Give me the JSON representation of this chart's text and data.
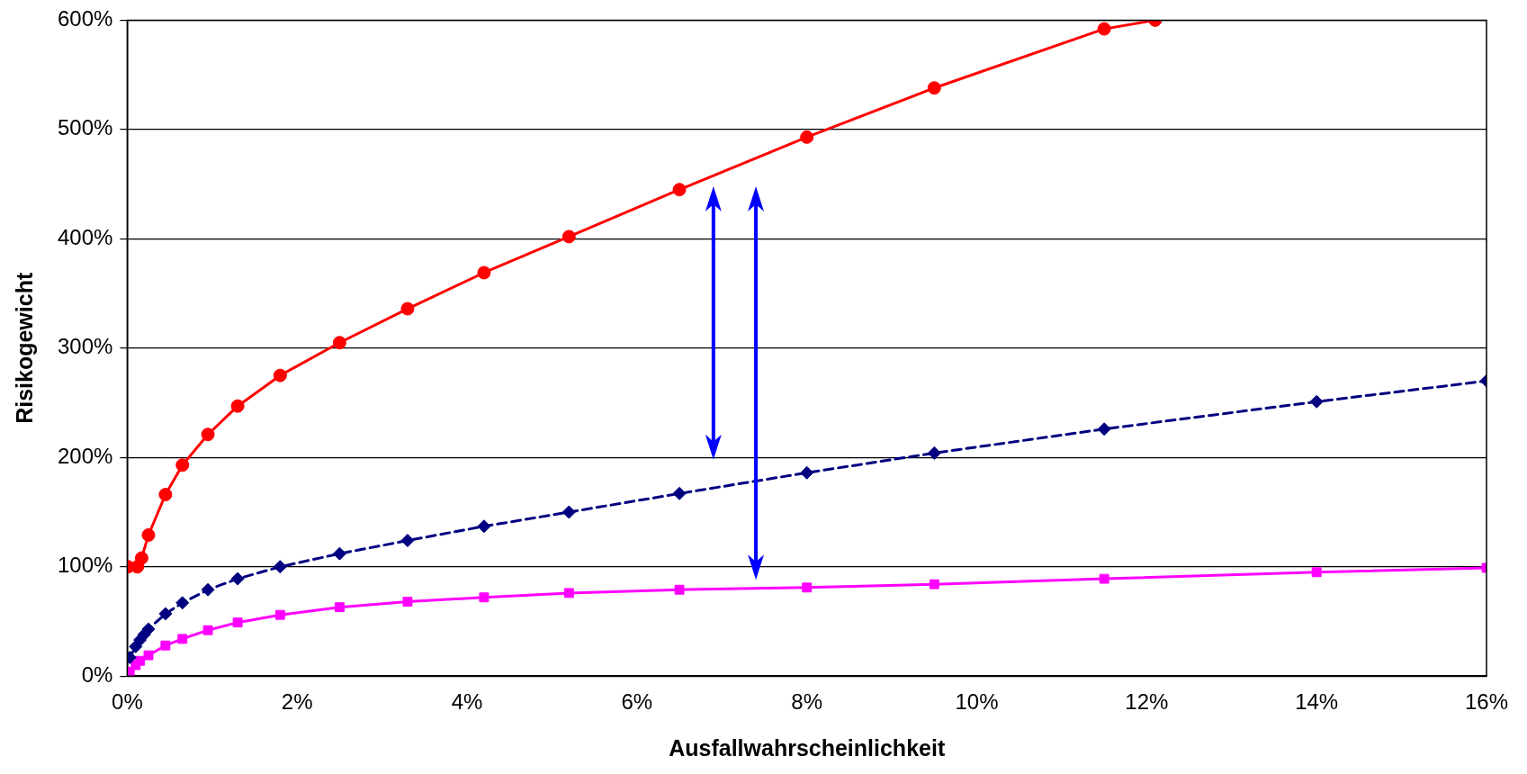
{
  "chart_data": {
    "type": "line",
    "xlabel": "Ausfallwahrscheinlichkeit",
    "ylabel": "Risikogewicht",
    "xlim": [
      0,
      16
    ],
    "xticks": [
      {
        "value": 0,
        "label": "0%"
      },
      {
        "value": 2,
        "label": "2%"
      },
      {
        "value": 4,
        "label": "4%"
      },
      {
        "value": 6,
        "label": "6%"
      },
      {
        "value": 8,
        "label": "8%"
      },
      {
        "value": 10,
        "label": "10%"
      },
      {
        "value": 12,
        "label": "12%"
      },
      {
        "value": 14,
        "label": "14%"
      },
      {
        "value": 16,
        "label": "16%"
      }
    ],
    "ylim": [
      0,
      600
    ],
    "yticks": [
      {
        "value": 0,
        "label": "0%"
      },
      {
        "value": 100,
        "label": "100%"
      },
      {
        "value": 200,
        "label": "200%"
      },
      {
        "value": 300,
        "label": "300%"
      },
      {
        "value": 400,
        "label": "400%"
      },
      {
        "value": 500,
        "label": "500%"
      },
      {
        "value": 600,
        "label": "600%"
      }
    ],
    "grid": "y",
    "legend": false,
    "series": [
      {
        "color": "#ff0000",
        "marker": "circle",
        "line_style": "solid",
        "x": [
          0.01,
          0.12,
          0.17,
          0.25,
          0.45,
          0.65,
          0.95,
          1.3,
          1.8,
          2.5,
          3.3,
          4.2,
          5.2,
          6.5,
          8,
          9.5,
          11.5,
          12.1
        ],
        "values": [
          100,
          100,
          108,
          129,
          166,
          193,
          221,
          247,
          275,
          305,
          336,
          369,
          402,
          445,
          493,
          538,
          592,
          600
        ]
      },
      {
        "color": "#000080",
        "marker": "diamond",
        "line_style": "dashed",
        "x": [
          0.03,
          0.1,
          0.15,
          0.2,
          0.25,
          0.45,
          0.65,
          0.95,
          1.3,
          1.8,
          2.5,
          3.3,
          4.2,
          5.2,
          6.5,
          8,
          9.5,
          11.5,
          14,
          16
        ],
        "values": [
          17,
          27,
          33,
          38,
          43,
          57,
          67,
          79,
          89,
          100,
          112,
          124,
          137,
          150,
          167,
          186,
          204,
          226,
          251,
          270
        ]
      },
      {
        "color": "#ff00ff",
        "marker": "square",
        "line_style": "solid",
        "x": [
          0.03,
          0.1,
          0.15,
          0.25,
          0.45,
          0.65,
          0.95,
          1.3,
          1.8,
          2.5,
          3.3,
          4.2,
          5.2,
          6.5,
          8,
          9.5,
          11.5,
          14,
          16
        ],
        "values": [
          4,
          10,
          14,
          19,
          28,
          34,
          42,
          49,
          56,
          63,
          68,
          72,
          76,
          79,
          81,
          84,
          89,
          95,
          99
        ]
      }
    ]
  }
}
